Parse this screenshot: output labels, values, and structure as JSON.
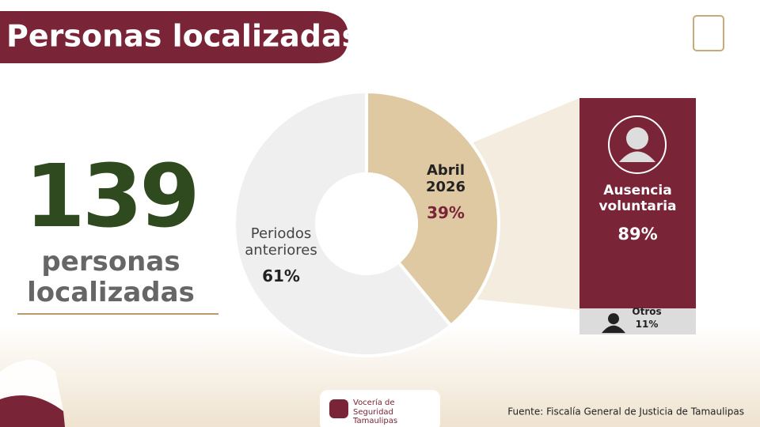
{
  "header": {
    "title": "Personas localizadas"
  },
  "summary": {
    "count": 139,
    "label": "personas localizadas"
  },
  "chart_data": [
    {
      "type": "pie",
      "categories": [
        "Periodos anteriores",
        "Abril 2026"
      ],
      "values": [
        61,
        39
      ],
      "value_labels": [
        "61%",
        "39%"
      ],
      "colors": [
        "#efefef",
        "#dfc9a3"
      ]
    },
    {
      "type": "stacked-bar",
      "categories": [
        "Ausencia voluntaria",
        "Otros"
      ],
      "values": [
        89,
        11
      ],
      "value_labels": [
        "89%",
        "11%"
      ],
      "colors": [
        "#7a2438",
        "#dcdcdc"
      ]
    }
  ],
  "footer": {
    "logo_text": "Vocería de Seguridad Tamaulipas",
    "source": "Fuente: Fiscalía General de Justicia de Tamaulipas"
  }
}
